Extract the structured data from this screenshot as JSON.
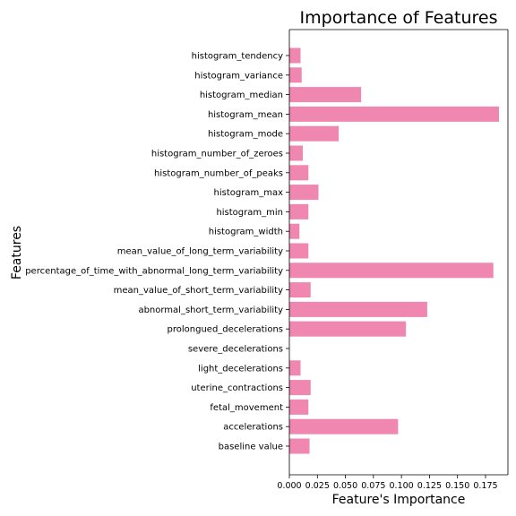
{
  "chart_data": {
    "type": "bar",
    "orientation": "horizontal",
    "title": "Importance of Features",
    "xlabel": "Feature's Importance",
    "ylabel": "Features",
    "bar_color": "#f087b0",
    "xlim": [
      0,
      0.195
    ],
    "xticks": [
      0.0,
      0.025,
      0.05,
      0.075,
      0.1,
      0.125,
      0.15,
      0.175
    ],
    "xtick_labels": [
      "0.000",
      "0.025",
      "0.050",
      "0.075",
      "0.100",
      "0.125",
      "0.150",
      "0.175"
    ],
    "grid": false,
    "categories": [
      "baseline value",
      "accelerations",
      "fetal_movement",
      "uterine_contractions",
      "light_decelerations",
      "severe_decelerations",
      "prolongued_decelerations",
      "abnormal_short_term_variability",
      "mean_value_of_short_term_variability",
      "percentage_of_time_with_abnormal_long_term_variability",
      "mean_value_of_long_term_variability",
      "histogram_width",
      "histogram_min",
      "histogram_max",
      "histogram_number_of_peaks",
      "histogram_number_of_zeroes",
      "histogram_mode",
      "histogram_mean",
      "histogram_median",
      "histogram_variance",
      "histogram_tendency"
    ],
    "values": [
      0.018,
      0.097,
      0.017,
      0.019,
      0.01,
      0.0,
      0.104,
      0.123,
      0.019,
      0.182,
      0.017,
      0.009,
      0.017,
      0.026,
      0.017,
      0.012,
      0.044,
      0.187,
      0.064,
      0.011,
      0.01
    ]
  }
}
